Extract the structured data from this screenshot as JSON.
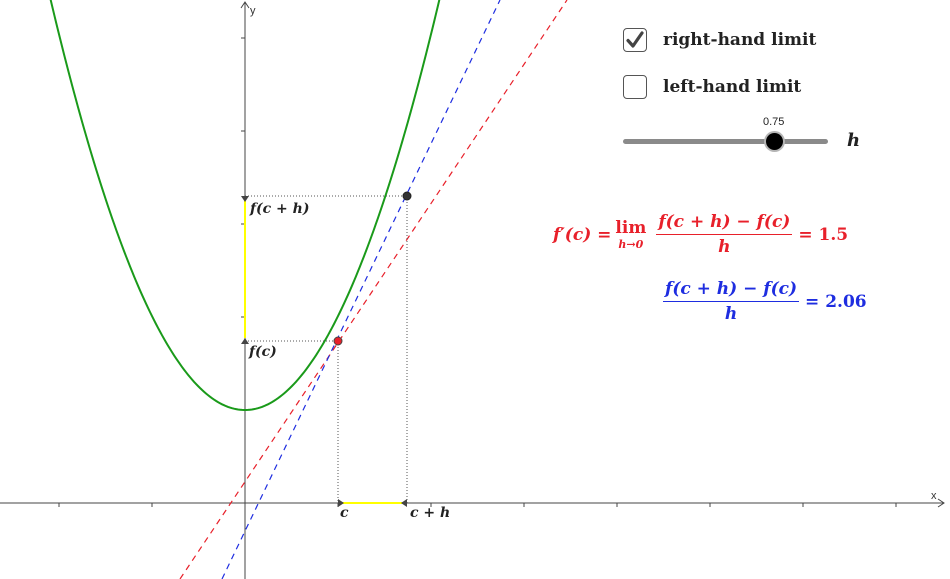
{
  "graph": {
    "x_axis_label": "x",
    "y_axis_label": "y",
    "function_label_fch": "f(c + h)",
    "function_label_fc": "f(c)",
    "point_label_c": "c",
    "point_label_ch": "c + h",
    "colors": {
      "curve": "#1a9a1a",
      "tangent": "#e8202a",
      "secant": "#1e2de0",
      "interval": "#ffff00",
      "point_c": "#e8202a",
      "point_ch": "#333333"
    }
  },
  "controls": {
    "right_limit": {
      "label": "right-hand limit",
      "checked": true
    },
    "left_limit": {
      "label": "left-hand limit",
      "checked": false
    },
    "slider": {
      "name": "h",
      "value": "0.75",
      "fraction": 0.75
    }
  },
  "formulas": {
    "derivative": {
      "lhs": "f′(c) =",
      "lim_word": "lim",
      "lim_sub": "h→0",
      "numerator": "f(c + h) − f(c)",
      "denominator": "h",
      "result": "= 1.5",
      "color": "#e8202a"
    },
    "difference_quotient": {
      "numerator": "f(c + h) − f(c)",
      "denominator": "h",
      "result": "= 2.06",
      "color": "#1e2de0"
    }
  }
}
